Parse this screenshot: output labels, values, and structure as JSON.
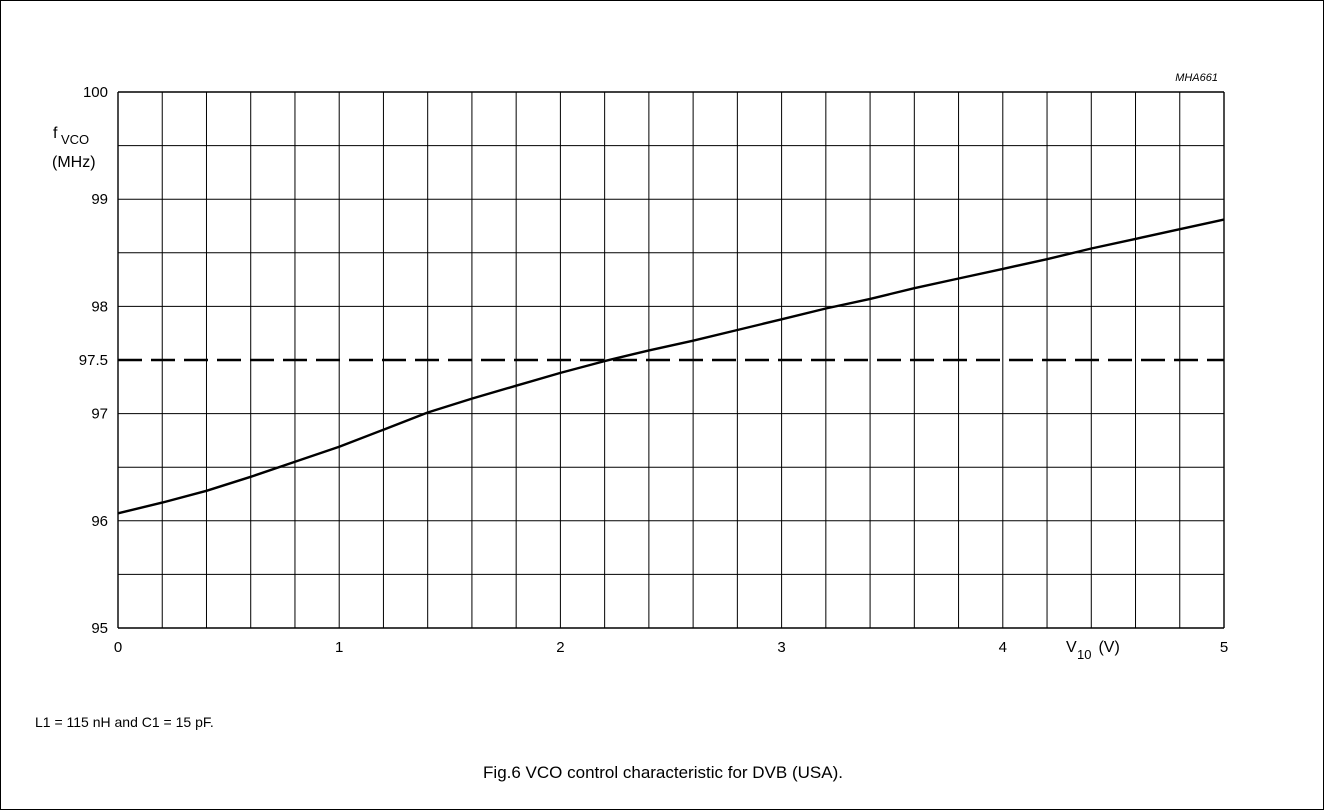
{
  "figure_id": "MHA661",
  "caption": "Fig.6  VCO control characteristic for DVB (USA).",
  "note": "L1 = 115 nH and C1 = 15 pF.",
  "chart_data": {
    "type": "line",
    "x_axis": {
      "label_main": "V",
      "label_sub": "10",
      "label_unit": " (V)",
      "range": [
        0,
        5
      ],
      "ticks": [
        0,
        1,
        2,
        3,
        4,
        5
      ],
      "tick_labels": [
        "0",
        "1",
        "2",
        "3",
        "4",
        "5"
      ],
      "minor_step": 0.2
    },
    "y_axis": {
      "label_main": "f",
      "label_sub": "VCO",
      "label_unit": "(MHz)",
      "range": [
        95,
        100
      ],
      "ticks": [
        95,
        96,
        97,
        97.5,
        98,
        99,
        100
      ],
      "tick_labels": [
        "95",
        "96",
        "97",
        "97.5",
        "98",
        "99",
        "100"
      ],
      "minor_step": 0.5
    },
    "grid": true,
    "series": [
      {
        "style": "solid",
        "x": [
          0,
          0.2,
          0.4,
          0.6,
          0.8,
          1.0,
          1.2,
          1.4,
          1.6,
          1.8,
          2.0,
          2.2,
          2.4,
          2.6,
          2.8,
          3.0,
          3.2,
          3.4,
          3.6,
          3.8,
          4.0,
          4.2,
          4.4,
          4.6,
          4.8,
          5.0
        ],
        "y": [
          96.07,
          96.17,
          96.28,
          96.41,
          96.55,
          96.69,
          96.85,
          97.01,
          97.14,
          97.26,
          97.38,
          97.49,
          97.59,
          97.68,
          97.78,
          97.88,
          97.98,
          98.07,
          98.17,
          98.26,
          98.35,
          98.44,
          98.54,
          98.63,
          98.72,
          98.81
        ]
      },
      {
        "style": "dashed",
        "x": [
          0,
          5
        ],
        "y": [
          97.5,
          97.5
        ]
      }
    ]
  }
}
